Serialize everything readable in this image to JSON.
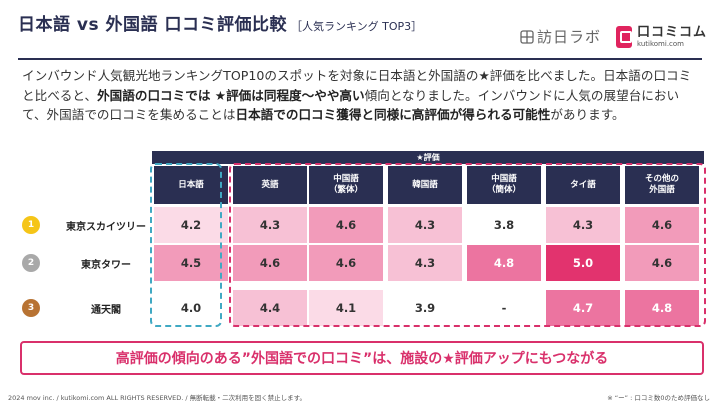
{
  "title": "日本語 vs 外国語 口コミ評価比較",
  "title_tag": "［人気ランキング TOP3］",
  "brands": {
    "houjin": "訪日ラボ",
    "kuchikomi": "口コミコム",
    "kuchikomi_url": "kutikomi.com"
  },
  "intro": {
    "p1": "インバウンド人気観光地ランキングTOP10のスポットを対象に日本語と外国語の★評価を比べました。日本語の口コミと比べると、",
    "b1": "外国語の口コミでは ★評価は同程度〜やや高い",
    "p2": "傾向となりました。インバウンドに人気の展望台において、外国語での口コミを集めることは",
    "b2": "日本語での口コミ獲得と同様に高評価が得られる可能性",
    "p3": "があります。"
  },
  "table": {
    "group_header": "★評価",
    "columns": [
      "日本語",
      "英語",
      "中国語\n（繁体）",
      "韓国語",
      "中国語\n（簡体）",
      "タイ語",
      "その他の\n外国語"
    ],
    "rows": [
      {
        "rank": "1",
        "rank_color": "#f5c518",
        "name": "東京スカイツリー",
        "values": [
          "4.2",
          "4.3",
          "4.6",
          "4.3",
          "3.8",
          "4.3",
          "4.6"
        ]
      },
      {
        "rank": "2",
        "rank_color": "#a9a9a9",
        "name": "東京タワー",
        "values": [
          "4.5",
          "4.6",
          "4.6",
          "4.3",
          "4.8",
          "5.0",
          "4.6"
        ]
      },
      {
        "rank": "3",
        "rank_color": "#b87333",
        "name": "通天閣",
        "values": [
          "4.0",
          "4.4",
          "4.1",
          "3.9",
          "-",
          "4.7",
          "4.8"
        ]
      }
    ]
  },
  "conclusion": "高評価の傾向のある”外国語での口コミ”は、施設の★評価アップにもつながる",
  "footer_left": "2024 mov inc. / kutikomi.com ALL RIGHTS RESERVED. / 無断転載・二次利用を固く禁止します。",
  "footer_right": "※ “ー” : 口コミ数0のため評価なし",
  "colors": {
    "navy": "#2a2f52",
    "accent_pink": "#d9306b",
    "accent_teal": "#40a9c3"
  }
}
